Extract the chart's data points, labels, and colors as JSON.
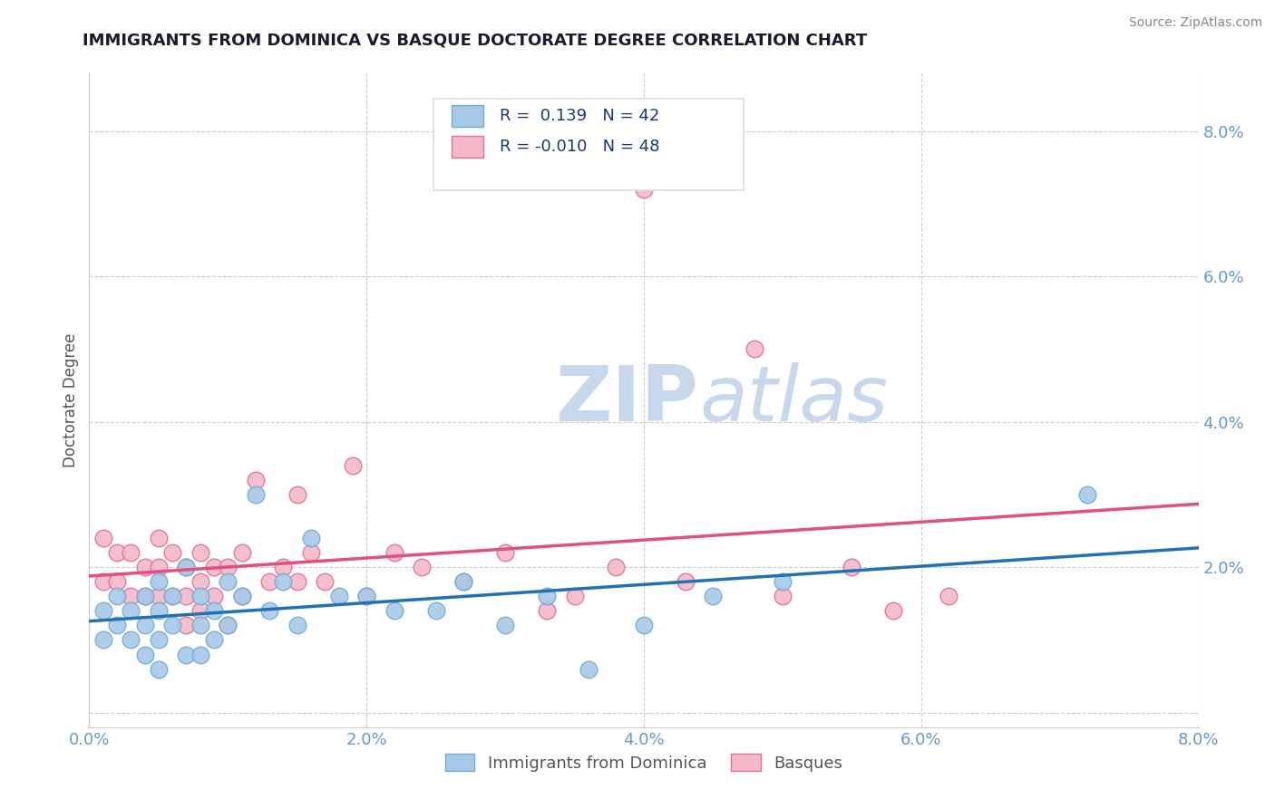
{
  "title": "IMMIGRANTS FROM DOMINICA VS BASQUE DOCTORATE DEGREE CORRELATION CHART",
  "source_text": "Source: ZipAtlas.com",
  "ylabel": "Doctorate Degree",
  "xlim": [
    0.0,
    0.08
  ],
  "ylim": [
    -0.002,
    0.088
  ],
  "yticks": [
    0.0,
    0.02,
    0.04,
    0.06,
    0.08
  ],
  "xticks": [
    0.0,
    0.02,
    0.04,
    0.06,
    0.08
  ],
  "xtick_labels": [
    "0.0%",
    "2.0%",
    "4.0%",
    "6.0%",
    "8.0%"
  ],
  "ytick_labels": [
    "",
    "2.0%",
    "4.0%",
    "6.0%",
    "8.0%"
  ],
  "series1_name": "Immigrants from Dominica",
  "series1_R": "0.139",
  "series1_N": "42",
  "series1_color": "#a8c8e8",
  "series1_border": "#6baed6",
  "series1_x": [
    0.001,
    0.001,
    0.002,
    0.002,
    0.003,
    0.003,
    0.004,
    0.004,
    0.004,
    0.005,
    0.005,
    0.005,
    0.005,
    0.006,
    0.006,
    0.007,
    0.007,
    0.008,
    0.008,
    0.008,
    0.009,
    0.009,
    0.01,
    0.01,
    0.011,
    0.012,
    0.013,
    0.014,
    0.015,
    0.016,
    0.018,
    0.02,
    0.022,
    0.025,
    0.027,
    0.03,
    0.033,
    0.036,
    0.04,
    0.045,
    0.05,
    0.072
  ],
  "series1_y": [
    0.014,
    0.01,
    0.016,
    0.012,
    0.014,
    0.01,
    0.016,
    0.012,
    0.008,
    0.018,
    0.014,
    0.01,
    0.006,
    0.016,
    0.012,
    0.02,
    0.008,
    0.016,
    0.012,
    0.008,
    0.014,
    0.01,
    0.018,
    0.012,
    0.016,
    0.03,
    0.014,
    0.018,
    0.012,
    0.024,
    0.016,
    0.016,
    0.014,
    0.014,
    0.018,
    0.012,
    0.016,
    0.006,
    0.012,
    0.016,
    0.018,
    0.03
  ],
  "series2_name": "Basques",
  "series2_R": "-0.010",
  "series2_N": "48",
  "series2_color": "#f4b8c8",
  "series2_border": "#e07090",
  "series2_x": [
    0.001,
    0.001,
    0.002,
    0.002,
    0.003,
    0.003,
    0.004,
    0.004,
    0.005,
    0.005,
    0.005,
    0.006,
    0.006,
    0.007,
    0.007,
    0.007,
    0.008,
    0.008,
    0.008,
    0.009,
    0.009,
    0.01,
    0.01,
    0.011,
    0.011,
    0.012,
    0.013,
    0.014,
    0.015,
    0.015,
    0.016,
    0.017,
    0.019,
    0.02,
    0.022,
    0.024,
    0.027,
    0.03,
    0.033,
    0.035,
    0.038,
    0.04,
    0.043,
    0.048,
    0.05,
    0.055,
    0.058,
    0.062
  ],
  "series2_y": [
    0.024,
    0.018,
    0.022,
    0.018,
    0.022,
    0.016,
    0.02,
    0.016,
    0.024,
    0.02,
    0.016,
    0.022,
    0.016,
    0.02,
    0.016,
    0.012,
    0.022,
    0.018,
    0.014,
    0.02,
    0.016,
    0.02,
    0.012,
    0.022,
    0.016,
    0.032,
    0.018,
    0.02,
    0.03,
    0.018,
    0.022,
    0.018,
    0.034,
    0.016,
    0.022,
    0.02,
    0.018,
    0.022,
    0.014,
    0.016,
    0.02,
    0.072,
    0.018,
    0.05,
    0.016,
    0.02,
    0.014,
    0.016
  ],
  "trend1_color": "#2171b5",
  "trend2_color": "#e05080",
  "watermark_zip": "ZIP",
  "watermark_atlas": "atlas",
  "watermark_color": "#c8d8ec",
  "background_color": "#ffffff",
  "grid_color": "#cccccc",
  "title_color": "#1a1a2e",
  "axis_label_color": "#555555",
  "tick_label_color": "#6699cc",
  "source_color": "#888888",
  "legend_box_color": "#dddddd",
  "figsize": [
    14.06,
    8.92
  ],
  "dpi": 100
}
